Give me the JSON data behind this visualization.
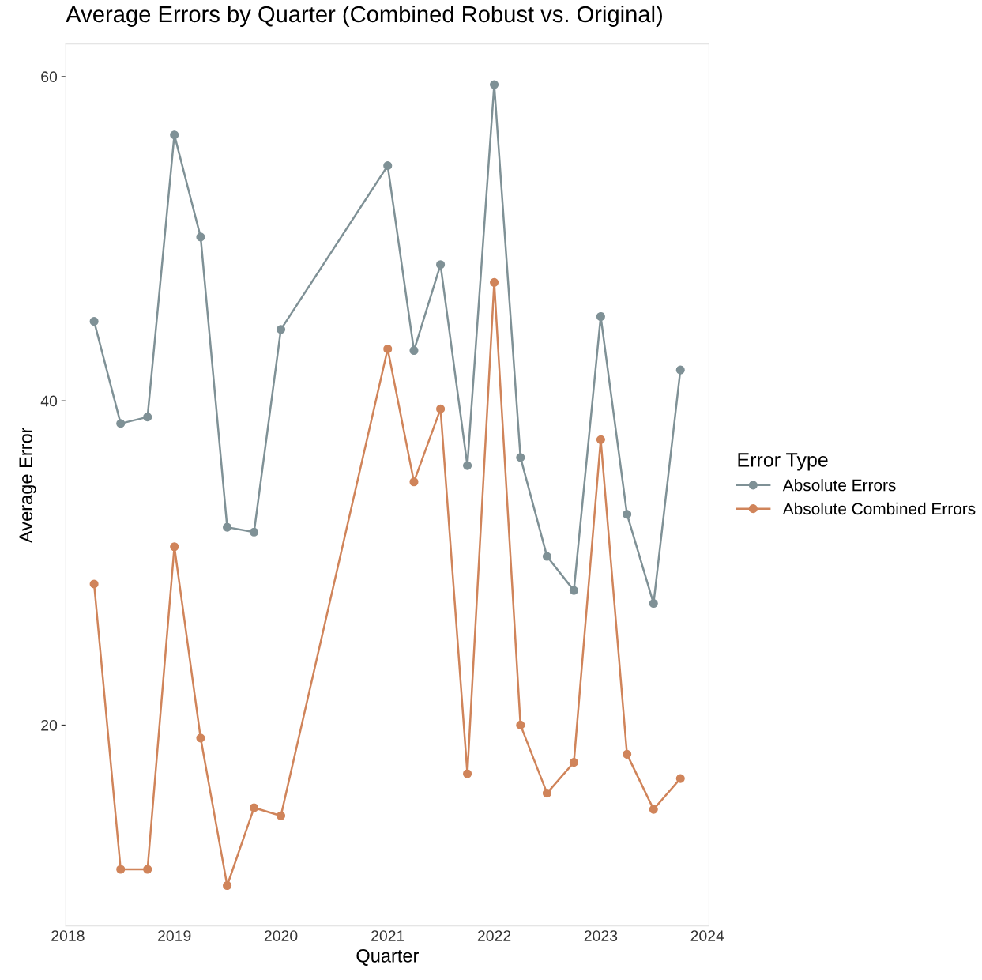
{
  "chart_data": {
    "type": "line",
    "title": "Average Errors by Quarter (Combined Robust vs. Original)",
    "xlabel": "Quarter",
    "ylabel": "Average Error",
    "legend_title": "Error Type",
    "legend": "right",
    "marker": "circle",
    "line_style": "solid",
    "grid": false,
    "x": [
      "2018-04-01",
      "2018-07-01",
      "2018-10-01",
      "2019-01-01",
      "2019-04-01",
      "2019-07-01",
      "2019-10-01",
      "2020-01-01",
      "2021-01-01",
      "2021-04-01",
      "2021-07-01",
      "2021-10-01",
      "2022-01-01",
      "2022-04-01",
      "2022-07-01",
      "2022-10-01",
      "2023-01-01",
      "2023-04-01",
      "2023-07-01",
      "2023-10-01"
    ],
    "series": [
      {
        "name": "Absolute Errors",
        "color": "#7f9196",
        "values": [
          44.9,
          38.6,
          39.0,
          56.4,
          50.1,
          32.2,
          31.9,
          44.4,
          54.5,
          43.1,
          48.4,
          36.0,
          59.5,
          36.5,
          30.4,
          28.3,
          45.2,
          33.0,
          27.5,
          41.9
        ]
      },
      {
        "name": "Absolute Combined Errors",
        "color": "#d0845a",
        "values": [
          28.7,
          11.1,
          11.1,
          31.0,
          19.2,
          10.1,
          14.9,
          14.4,
          43.2,
          35.0,
          39.5,
          17.0,
          47.3,
          20.0,
          15.8,
          17.7,
          37.6,
          18.2,
          14.8,
          16.7
        ]
      }
    ],
    "ylim": [
      7.6,
      62.0
    ],
    "yticks": [
      20,
      40,
      60
    ],
    "xlim": [
      "2017-12-25",
      "2024-01-07"
    ],
    "xticks": [
      "2018",
      "2019",
      "2020",
      "2021",
      "2022",
      "2023",
      "2024"
    ]
  }
}
